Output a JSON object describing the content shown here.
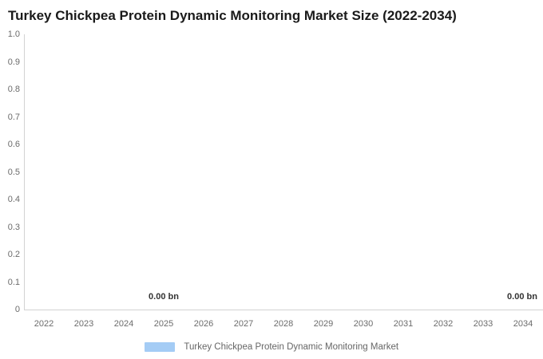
{
  "chart_data": {
    "type": "bar",
    "title": "Turkey Chickpea Protein Dynamic Monitoring Market Size (2022-2034)",
    "categories": [
      "2022",
      "2023",
      "2024",
      "2025",
      "2026",
      "2027",
      "2028",
      "2029",
      "2030",
      "2031",
      "2032",
      "2033",
      "2034"
    ],
    "series": [
      {
        "name": "Turkey Chickpea Protein Dynamic Monitoring Market",
        "values": [
          0,
          0,
          0,
          0,
          0,
          0,
          0,
          0,
          0,
          0,
          0,
          0,
          0
        ],
        "color": "#a4ccf5"
      }
    ],
    "point_labels": [
      {
        "category": "2025",
        "text": "0.00 bn"
      },
      {
        "category": "2034",
        "text": "0.00 bn"
      }
    ],
    "xlabel": "",
    "ylabel": "",
    "ylim": [
      0,
      1.0
    ],
    "yticks": [
      "1.0",
      "0.9",
      "0.8",
      "0.7",
      "0.6",
      "0.5",
      "0.4",
      "0.3",
      "0.2",
      "0.1",
      "0"
    ],
    "grid": "off",
    "legend": {
      "position": "bottom-center",
      "label": "Turkey Chickpea Protein Dynamic Monitoring Market"
    },
    "value_unit": "bn"
  }
}
